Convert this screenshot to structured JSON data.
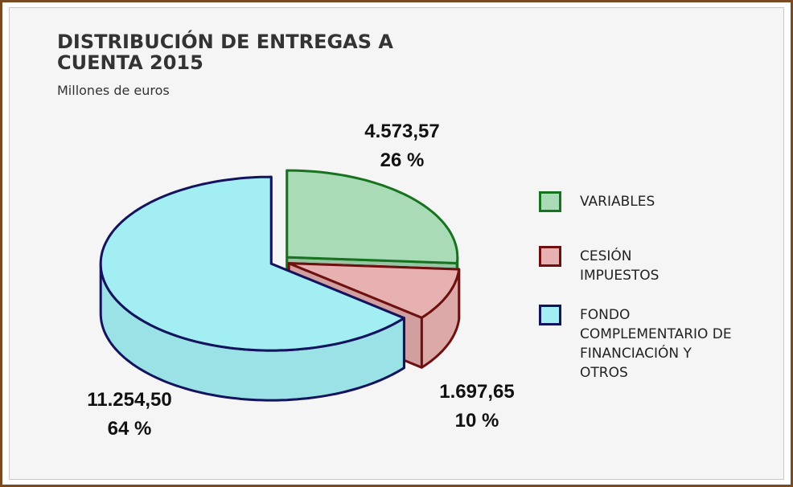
{
  "chart_data": {
    "type": "pie3d",
    "title": "DISTRIBUCIÓN DE ENTREGAS A CUENTA 2015",
    "subtitle": "Millones de euros",
    "categories": [
      "VARIABLES",
      "CESIÓN IMPUESTOS",
      "FONDO COMPLEMENTARIO DE FINANCIACIÓN Y OTROS"
    ],
    "values": [
      4573.57,
      1697.65,
      11254.5
    ],
    "value_labels": [
      "4.573,57",
      "1.697,65",
      "11.254,50"
    ],
    "percent_values": [
      26,
      10,
      64
    ],
    "percent_labels": [
      "26 %",
      "10 %",
      "64 %"
    ],
    "colors": [
      "#a9dcb6",
      "#e8b1b1",
      "#a3eef2"
    ],
    "edge_colors": [
      "#17731f",
      "#6e1010",
      "#13135e"
    ],
    "legend": "right"
  }
}
